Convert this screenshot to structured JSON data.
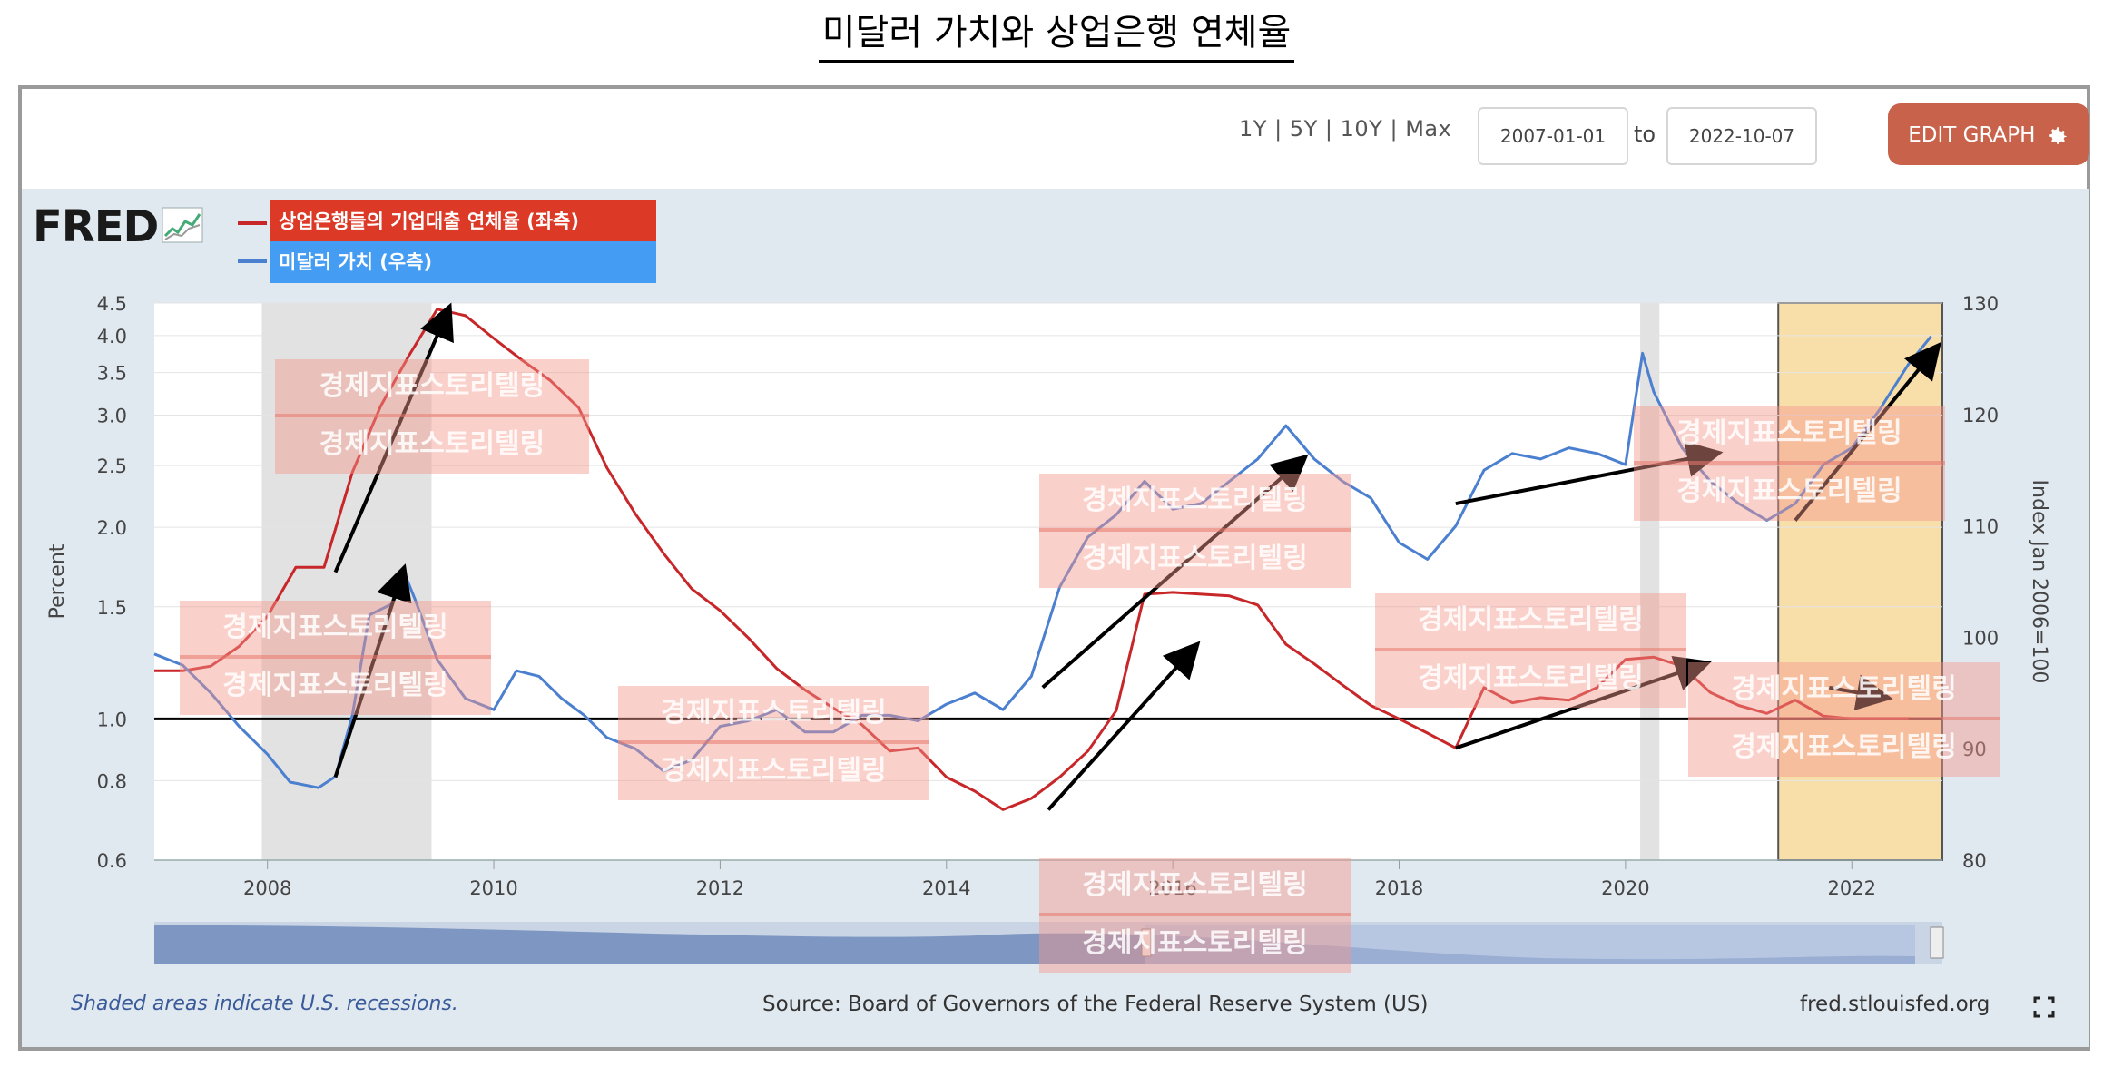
{
  "page": {
    "title": "미달러 가치와 상업은행 연체율"
  },
  "toolbar": {
    "range_1y": "1Y",
    "range_5y": "5Y",
    "range_10y": "10Y",
    "range_max": "Max",
    "sep": "|",
    "start_date": "2007-01-01",
    "to_label": "to",
    "end_date": "2022-10-07",
    "edit_label": "EDIT GRAPH",
    "edit_icon": "gear-icon"
  },
  "logo": {
    "text": "FRED"
  },
  "legend": {
    "red_label": "상업은행들의 기업대출 연체율 (좌측)",
    "blue_label": "미달러 가치  (우측)"
  },
  "watermark_text": "경제지표스토리텔링",
  "footer": {
    "recession_note": "Shaded areas indicate U.S. recessions.",
    "source": "Source: Board of Governors of the Federal Reserve System (US)",
    "site": "fred.stlouisfed.org"
  },
  "colors": {
    "red": "#c8272a",
    "blue": "#4b7fd0",
    "recession": "#e2e2e2",
    "highlight": "#f7d99a",
    "button": "#c8624a"
  },
  "chart_data": {
    "type": "line",
    "ylabel_left": "Percent",
    "ylabel_right": "Index Jan 2006=100",
    "left_axis_ticks": [
      0.6,
      0.8,
      1.0,
      1.5,
      2.0,
      2.5,
      3.0,
      3.5,
      4.0,
      4.5
    ],
    "left_axis_tick_labels": [
      "0.6",
      "0.8",
      "1.0",
      "1.5",
      "2.0",
      "2.5",
      "3.0",
      "3.5",
      "4.0",
      "4.5"
    ],
    "left_scale": "log",
    "right_axis_ticks": [
      80,
      90,
      100,
      110,
      120,
      130
    ],
    "right_axis_tick_labels": [
      "80",
      "90",
      "100",
      "110",
      "120",
      "130"
    ],
    "x_ticks": [
      2008,
      2010,
      2012,
      2014,
      2016,
      2018,
      2020,
      2022
    ],
    "x_tick_labels": [
      "2008",
      "2010",
      "2012",
      "2014",
      "2016",
      "2018",
      "2020",
      "2022"
    ],
    "xlim": [
      2007.0,
      2022.8
    ],
    "reference_line": 1.0,
    "recessions": [
      [
        2007.95,
        2009.45
      ],
      [
        2020.13,
        2020.3
      ]
    ],
    "highlight_region": [
      2021.35,
      2022.8
    ],
    "series": [
      {
        "name": "상업은행들의 기업대출 연체율 (좌측)",
        "axis": "left",
        "color": "#c8272a",
        "x": [
          2007.0,
          2007.25,
          2007.5,
          2007.75,
          2008.0,
          2008.25,
          2008.5,
          2008.75,
          2009.0,
          2009.25,
          2009.5,
          2009.75,
          2010.0,
          2010.25,
          2010.5,
          2010.75,
          2011.0,
          2011.25,
          2011.5,
          2011.75,
          2012.0,
          2012.25,
          2012.5,
          2012.75,
          2013.0,
          2013.25,
          2013.5,
          2013.75,
          2014.0,
          2014.25,
          2014.5,
          2014.75,
          2015.0,
          2015.25,
          2015.5,
          2015.75,
          2016.0,
          2016.25,
          2016.5,
          2016.75,
          2017.0,
          2017.25,
          2017.5,
          2017.75,
          2018.0,
          2018.25,
          2018.5,
          2018.75,
          2019.0,
          2019.25,
          2019.5,
          2019.75,
          2020.0,
          2020.25,
          2020.5,
          2020.75,
          2021.0,
          2021.25,
          2021.5,
          2021.75,
          2022.0,
          2022.25,
          2022.5
        ],
        "y": [
          1.19,
          1.19,
          1.21,
          1.3,
          1.45,
          1.73,
          1.73,
          2.44,
          3.1,
          3.72,
          4.4,
          4.3,
          3.96,
          3.66,
          3.4,
          3.08,
          2.48,
          2.1,
          1.82,
          1.6,
          1.48,
          1.34,
          1.2,
          1.11,
          1.04,
          0.98,
          0.89,
          0.9,
          0.81,
          0.77,
          0.72,
          0.75,
          0.81,
          0.89,
          1.03,
          1.57,
          1.58,
          1.57,
          1.56,
          1.51,
          1.31,
          1.22,
          1.13,
          1.05,
          1.0,
          0.95,
          0.9,
          1.12,
          1.06,
          1.08,
          1.07,
          1.12,
          1.24,
          1.25,
          1.21,
          1.1,
          1.05,
          1.02,
          1.07,
          1.01,
          1.0,
          1.0,
          1.0
        ]
      },
      {
        "name": "미달러 가치  (우측)",
        "axis": "right",
        "color": "#4b7fd0",
        "x": [
          2007.0,
          2007.25,
          2007.5,
          2007.75,
          2008.0,
          2008.2,
          2008.45,
          2008.6,
          2008.75,
          2008.9,
          2009.1,
          2009.2,
          2009.3,
          2009.5,
          2009.75,
          2010.0,
          2010.2,
          2010.4,
          2010.6,
          2010.8,
          2011.0,
          2011.25,
          2011.5,
          2011.75,
          2012.0,
          2012.25,
          2012.5,
          2012.75,
          2013.0,
          2013.25,
          2013.5,
          2013.75,
          2014.0,
          2014.25,
          2014.5,
          2014.75,
          2015.0,
          2015.25,
          2015.5,
          2015.75,
          2016.0,
          2016.25,
          2016.5,
          2016.75,
          2017.0,
          2017.25,
          2017.5,
          2017.75,
          2018.0,
          2018.25,
          2018.5,
          2018.75,
          2019.0,
          2019.25,
          2019.5,
          2019.75,
          2020.0,
          2020.15,
          2020.25,
          2020.5,
          2020.75,
          2021.0,
          2021.25,
          2021.5,
          2021.75,
          2022.0,
          2022.25,
          2022.5,
          2022.7
        ],
        "y": [
          98.5,
          97.5,
          95.0,
          92.0,
          89.5,
          87.0,
          86.5,
          87.5,
          93.0,
          102.0,
          103.0,
          106.0,
          103.5,
          98.0,
          94.5,
          93.5,
          97.0,
          96.5,
          94.5,
          93.0,
          91.0,
          90.0,
          88.0,
          89.0,
          92.0,
          92.5,
          93.5,
          91.5,
          91.5,
          93.0,
          93.0,
          92.5,
          94.0,
          95.0,
          93.5,
          96.5,
          104.5,
          109.0,
          111.0,
          114.0,
          111.5,
          112.0,
          114.0,
          116.0,
          119.0,
          116.0,
          114.0,
          112.5,
          108.5,
          107.0,
          110.0,
          115.0,
          116.5,
          116.0,
          117.0,
          116.5,
          115.5,
          125.5,
          122.0,
          117.0,
          114.0,
          112.0,
          110.5,
          112.0,
          115.5,
          117.0,
          120.5,
          124.5,
          127.0
        ]
      }
    ],
    "annotations": "black trend arrows drawn over both series"
  }
}
